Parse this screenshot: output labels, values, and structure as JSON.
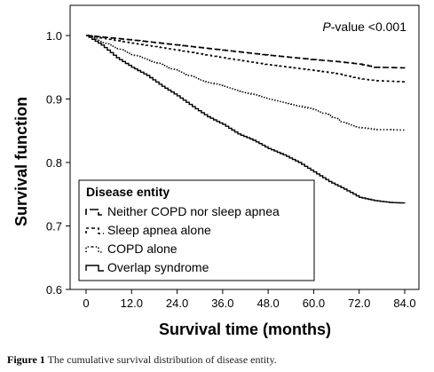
{
  "chart_data": {
    "type": "line",
    "step": true,
    "xlabel": "Survival time (months)",
    "ylabel": "Survival function",
    "xlim": [
      0,
      84
    ],
    "ylim": [
      0.6,
      1.0
    ],
    "xticks": [
      "0",
      "12.0",
      "24.0",
      "36.0",
      "48.0",
      "60.0",
      "72.0",
      "84.0"
    ],
    "yticks": [
      "0.6",
      "0.7",
      "0.8",
      "0.9",
      "1.0"
    ],
    "annotation": {
      "italic": "P",
      "rest": "-value <0.001"
    },
    "legend": {
      "title": "Disease entity",
      "position": "bottom-left"
    },
    "grid": false,
    "series": [
      {
        "name": "Neither COPD nor sleep apnea",
        "style": "long-dash",
        "points": [
          [
            0,
            1.0
          ],
          [
            12,
            0.993
          ],
          [
            24,
            0.985
          ],
          [
            36,
            0.977
          ],
          [
            48,
            0.969
          ],
          [
            60,
            0.962
          ],
          [
            66,
            0.959
          ],
          [
            72,
            0.955
          ],
          [
            76,
            0.95
          ],
          [
            84,
            0.949
          ]
        ]
      },
      {
        "name": "Sleep apnea alone",
        "style": "short-dash",
        "points": [
          [
            0,
            1.0
          ],
          [
            12,
            0.988
          ],
          [
            24,
            0.977
          ],
          [
            36,
            0.965
          ],
          [
            48,
            0.954
          ],
          [
            60,
            0.945
          ],
          [
            66,
            0.94
          ],
          [
            72,
            0.932
          ],
          [
            76,
            0.929
          ],
          [
            84,
            0.927
          ]
        ]
      },
      {
        "name": "COPD alone",
        "style": "dotted",
        "points": [
          [
            0,
            1.0
          ],
          [
            6,
            0.985
          ],
          [
            12,
            0.97
          ],
          [
            18,
            0.958
          ],
          [
            24,
            0.944
          ],
          [
            30,
            0.93
          ],
          [
            36,
            0.92
          ],
          [
            42,
            0.91
          ],
          [
            48,
            0.9
          ],
          [
            54,
            0.892
          ],
          [
            60,
            0.883
          ],
          [
            64,
            0.874
          ],
          [
            68,
            0.862
          ],
          [
            72,
            0.855
          ],
          [
            76,
            0.852
          ],
          [
            84,
            0.851
          ]
        ]
      },
      {
        "name": "Overlap syndrome",
        "style": "solid",
        "points": [
          [
            0,
            1.0
          ],
          [
            4,
            0.985
          ],
          [
            8,
            0.965
          ],
          [
            12,
            0.95
          ],
          [
            16,
            0.937
          ],
          [
            20,
            0.92
          ],
          [
            24,
            0.905
          ],
          [
            28,
            0.888
          ],
          [
            32,
            0.872
          ],
          [
            36,
            0.86
          ],
          [
            40,
            0.845
          ],
          [
            44,
            0.835
          ],
          [
            48,
            0.822
          ],
          [
            52,
            0.812
          ],
          [
            56,
            0.8
          ],
          [
            60,
            0.785
          ],
          [
            64,
            0.77
          ],
          [
            68,
            0.758
          ],
          [
            72,
            0.745
          ],
          [
            76,
            0.74
          ],
          [
            80,
            0.737
          ],
          [
            84,
            0.736
          ]
        ]
      }
    ]
  },
  "caption": {
    "label": "Figure 1",
    "text": " The cumulative survival distribution of disease entity."
  }
}
